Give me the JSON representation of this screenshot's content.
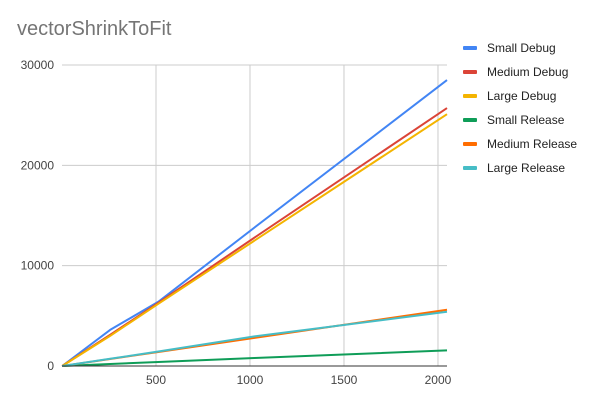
{
  "chart_data": {
    "type": "line",
    "title": "vectorShrinkToFit",
    "xlabel": "",
    "ylabel": "",
    "xlim": [
      0,
      2048
    ],
    "ylim": [
      0,
      30000
    ],
    "x_ticks": [
      500,
      1000,
      1500,
      2000
    ],
    "y_ticks": [
      0,
      10000,
      20000,
      30000
    ],
    "grid": true,
    "legend_position": "right",
    "series": [
      {
        "name": "Small Debug",
        "color": "#4285F4",
        "x": [
          1,
          256,
          512,
          1024,
          2048
        ],
        "y": [
          0,
          3600,
          6400,
          13800,
          28500
        ]
      },
      {
        "name": "Medium Debug",
        "color": "#DB4437",
        "x": [
          1,
          256,
          512,
          1024,
          2048
        ],
        "y": [
          0,
          3100,
          6300,
          12800,
          25700
        ]
      },
      {
        "name": "Large Debug",
        "color": "#F4B400",
        "x": [
          1,
          256,
          512,
          1024,
          2048
        ],
        "y": [
          0,
          3000,
          6200,
          12500,
          25100
        ]
      },
      {
        "name": "Small Release",
        "color": "#0F9D58",
        "x": [
          1,
          256,
          512,
          1024,
          2048
        ],
        "y": [
          0,
          200,
          400,
          800,
          1550
        ]
      },
      {
        "name": "Medium Release",
        "color": "#FF6D00",
        "x": [
          1,
          256,
          512,
          1024,
          2048
        ],
        "y": [
          0,
          700,
          1400,
          2800,
          5600
        ]
      },
      {
        "name": "Large Release",
        "color": "#46BDC6",
        "x": [
          1,
          256,
          512,
          1024,
          2048
        ],
        "y": [
          0,
          720,
          1450,
          2950,
          5400
        ]
      }
    ]
  }
}
